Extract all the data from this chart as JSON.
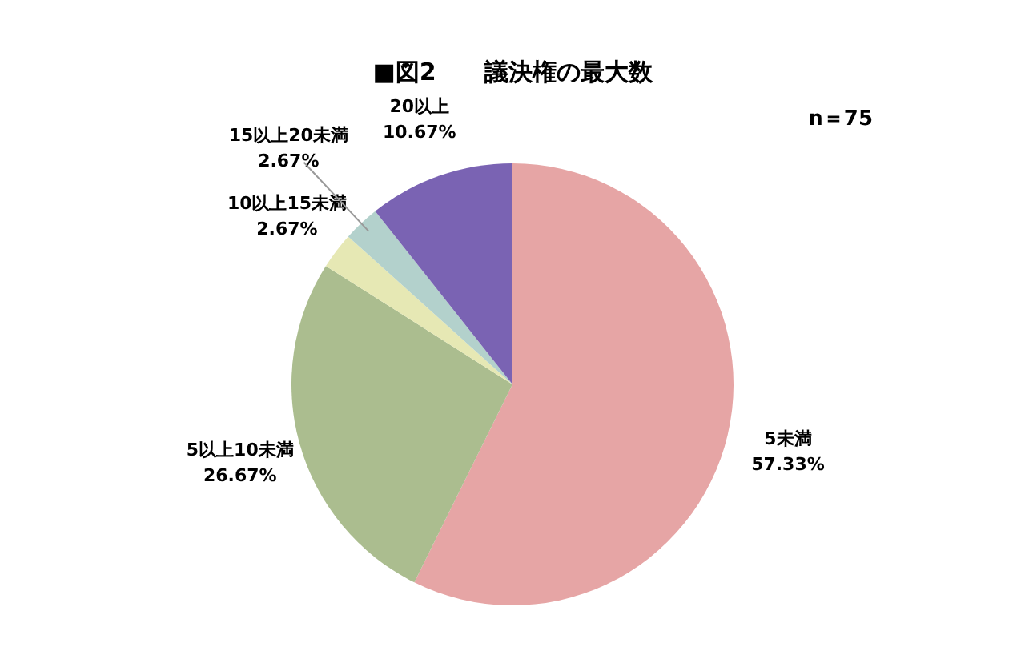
{
  "chart_data": {
    "type": "pie",
    "title": "■図2　　議決権の最大数",
    "annotations": [
      "n＝75"
    ],
    "categories": [
      "5未満",
      "5以上10未満",
      "10以上15未満",
      "15以上20未満",
      "20以上"
    ],
    "values": [
      57.33,
      26.67,
      2.67,
      2.67,
      10.67
    ],
    "colors": [
      "#e6a5a5",
      "#abbd8f",
      "#e6e8b4",
      "#b3d1cc",
      "#7a63b3"
    ],
    "value_labels": [
      "57.33%",
      "26.67%",
      "2.67%",
      "2.67%",
      "10.67%"
    ]
  }
}
